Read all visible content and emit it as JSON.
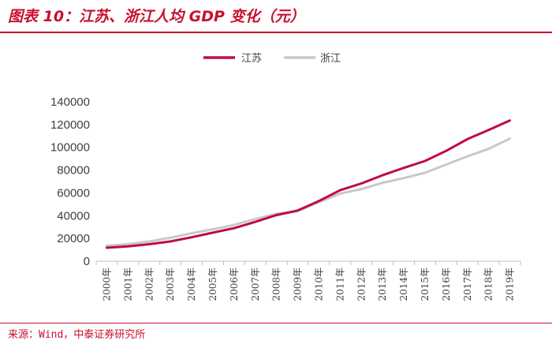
{
  "header": {
    "title": "图表 10：江苏、浙江人均 GDP 变化（元）"
  },
  "footer": {
    "source": "来源：Wind，中泰证券研究所"
  },
  "colors": {
    "accent": "#c8102e",
    "jiangsu": "#c00c3f",
    "zhejiang": "#c8c8c8",
    "axis": "#bfbfbf",
    "text": "#404040"
  },
  "chart_data": {
    "type": "line",
    "title": "江苏、浙江人均 GDP 变化（元）",
    "xlabel": "",
    "ylabel": "",
    "ylim": [
      0,
      140000
    ],
    "yticks": [
      "0",
      "20000",
      "40000",
      "60000",
      "80000",
      "100000",
      "120000",
      "140000"
    ],
    "grid": false,
    "legend_position": "top-center",
    "categories": [
      "2000年",
      "2001年",
      "2002年",
      "2003年",
      "2004年",
      "2005年",
      "2006年",
      "2007年",
      "2008年",
      "2009年",
      "2010年",
      "2011年",
      "2012年",
      "2013年",
      "2014年",
      "2015年",
      "2016年",
      "2017年",
      "2018年",
      "2019年"
    ],
    "series": [
      {
        "name": "江苏",
        "values": [
          11800,
          13000,
          14900,
          17300,
          21000,
          25000,
          29000,
          34500,
          40500,
          44500,
          52800,
          62300,
          68300,
          75500,
          81900,
          88000,
          96900,
          107200,
          115200,
          123600
        ]
      },
      {
        "name": "浙江",
        "values": [
          13600,
          15000,
          17300,
          20600,
          24500,
          28000,
          31800,
          37000,
          41600,
          43800,
          51800,
          59300,
          63300,
          68800,
          73000,
          77600,
          84900,
          92100,
          98600,
          107600
        ]
      }
    ]
  }
}
